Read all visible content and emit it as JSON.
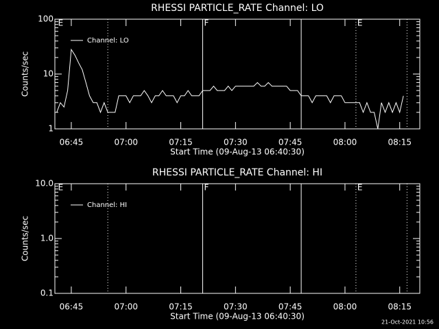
{
  "chart_data": [
    {
      "type": "line",
      "title": "RHESSI PARTICLE_RATE Channel: LO",
      "xlabel": "Start Time (09-Aug-13 06:40:30)",
      "ylabel": "Counts/sec",
      "log_y": true,
      "xlim": [
        "06:40:30",
        "08:20:30"
      ],
      "ylim": [
        1,
        100
      ],
      "xticks": [
        "06:45",
        "07:00",
        "07:15",
        "07:30",
        "07:45",
        "08:00",
        "08:15"
      ],
      "yticks": [
        1,
        10,
        100
      ],
      "markers": [
        {
          "x": "06:55",
          "style": "dotted"
        },
        {
          "x": "07:21",
          "style": "solid"
        },
        {
          "x": "07:48",
          "style": "solid"
        },
        {
          "x": "08:03",
          "style": "dotted"
        },
        {
          "x": "08:17",
          "style": "dotted"
        }
      ],
      "marker_labels": [
        {
          "x": "06:41",
          "text": "E"
        },
        {
          "x": "07:21",
          "text": "F"
        },
        {
          "x": "08:03",
          "text": "E"
        }
      ],
      "legend": "upper left",
      "x": [
        "06:41",
        "06:42",
        "06:43",
        "06:44",
        "06:45",
        "06:46",
        "06:47",
        "06:48",
        "06:49",
        "06:50",
        "06:51",
        "06:52",
        "06:53",
        "06:54",
        "06:55",
        "06:56",
        "06:57",
        "06:58",
        "06:59",
        "07:00",
        "07:01",
        "07:02",
        "07:03",
        "07:04",
        "07:05",
        "07:06",
        "07:07",
        "07:08",
        "07:09",
        "07:10",
        "07:11",
        "07:12",
        "07:13",
        "07:14",
        "07:15",
        "07:16",
        "07:17",
        "07:18",
        "07:19",
        "07:20",
        "07:21",
        "07:22",
        "07:23",
        "07:24",
        "07:25",
        "07:26",
        "07:27",
        "07:28",
        "07:29",
        "07:30",
        "07:31",
        "07:32",
        "07:33",
        "07:34",
        "07:35",
        "07:36",
        "07:37",
        "07:38",
        "07:39",
        "07:40",
        "07:41",
        "07:42",
        "07:43",
        "07:44",
        "07:45",
        "07:46",
        "07:47",
        "07:48",
        "07:49",
        "07:50",
        "07:51",
        "07:52",
        "07:53",
        "07:54",
        "07:55",
        "07:56",
        "07:57",
        "07:58",
        "07:59",
        "08:00",
        "08:01",
        "08:02",
        "08:03",
        "08:04",
        "08:05",
        "08:06",
        "08:07",
        "08:08",
        "08:09",
        "08:10",
        "08:11",
        "08:12",
        "08:13",
        "08:14",
        "08:15",
        "08:16"
      ],
      "series": [
        {
          "name": "Channel: LO",
          "color": "#ffffff",
          "values": [
            2,
            3,
            2.5,
            5,
            28,
            22,
            16,
            12,
            7,
            4,
            3,
            3,
            2,
            3,
            2,
            2,
            2,
            4,
            4,
            4,
            3,
            4,
            4,
            4,
            5,
            4,
            3,
            4,
            4,
            5,
            4,
            4,
            4,
            3,
            4,
            4,
            5,
            4,
            4,
            4,
            5,
            5,
            5,
            6,
            5,
            5,
            5,
            6,
            5,
            6,
            6,
            6,
            6,
            6,
            6,
            7,
            6,
            6,
            7,
            6,
            6,
            6,
            6,
            6,
            5,
            5,
            5,
            4,
            4,
            4,
            3,
            4,
            4,
            4,
            4,
            3,
            4,
            4,
            4,
            3,
            3,
            3,
            3,
            3,
            2,
            3,
            2,
            2,
            1,
            3,
            2,
            3,
            2,
            3,
            2,
            4
          ]
        }
      ]
    },
    {
      "type": "line",
      "title": "RHESSI PARTICLE_RATE Channel: HI",
      "xlabel": "Start Time (09-Aug-13 06:40:30)",
      "ylabel": "Counts/sec",
      "log_y": true,
      "xlim": [
        "06:40:30",
        "08:20:30"
      ],
      "ylim": [
        0.1,
        10
      ],
      "xticks": [
        "06:45",
        "07:00",
        "07:15",
        "07:30",
        "07:45",
        "08:00",
        "08:15"
      ],
      "yticks": [
        {
          "value": 0.1,
          "label": "0.1"
        },
        {
          "value": 1,
          "label": "1.0"
        },
        {
          "value": 10,
          "label": "10.0"
        }
      ],
      "markers": [
        {
          "x": "06:55",
          "style": "dotted"
        },
        {
          "x": "07:21",
          "style": "solid"
        },
        {
          "x": "07:48",
          "style": "solid"
        },
        {
          "x": "08:03",
          "style": "dotted"
        },
        {
          "x": "08:17",
          "style": "dotted"
        }
      ],
      "marker_labels": [
        {
          "x": "06:41",
          "text": "E"
        },
        {
          "x": "07:21",
          "text": "F"
        },
        {
          "x": "08:03",
          "text": "E"
        }
      ],
      "legend": "upper left",
      "x": [],
      "series": [
        {
          "name": "Channel: HI",
          "color": "#ffffff",
          "values": []
        }
      ]
    }
  ],
  "footer": "21-Oct-2021 10:56"
}
